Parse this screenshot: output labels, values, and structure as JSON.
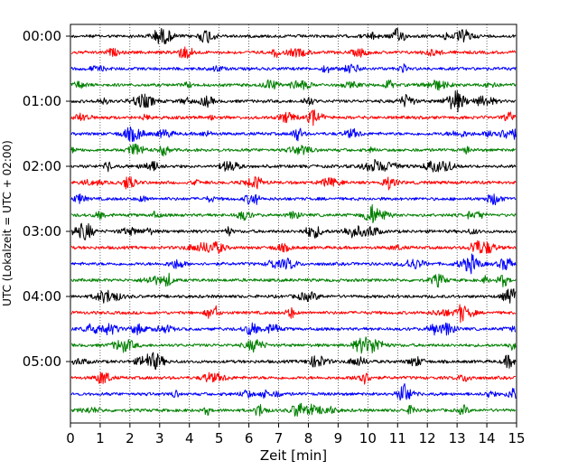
{
  "chart_data": {
    "type": "line",
    "title": "",
    "xlabel": "Zeit  [min]",
    "ylabel": "UTC (Lokalzeit = UTC + 02:00)",
    "xlim": [
      0,
      15
    ],
    "x_ticks": [
      0,
      1,
      2,
      3,
      4,
      5,
      6,
      7,
      8,
      9,
      10,
      11,
      12,
      13,
      14,
      15
    ],
    "x_tick_labels": [
      "0",
      "1",
      "2",
      "3",
      "4",
      "5",
      "6",
      "7",
      "8",
      "9",
      "10",
      "11",
      "12",
      "13",
      "14",
      "15"
    ],
    "y_tick_labels": [
      "00:00",
      "01:00",
      "02:00",
      "03:00",
      "04:00",
      "05:00"
    ],
    "y_tick_trace_index": [
      0,
      4,
      8,
      12,
      16,
      20
    ],
    "grid": "vertical dotted at each minute",
    "trace_minutes": 15,
    "color_cycle": [
      "#000000",
      "#ff0000",
      "#0000ff",
      "#008000"
    ],
    "traces": [
      {
        "start": "00:00"
      },
      {
        "start": "00:15"
      },
      {
        "start": "00:30"
      },
      {
        "start": "00:45"
      },
      {
        "start": "01:00"
      },
      {
        "start": "01:15"
      },
      {
        "start": "01:30"
      },
      {
        "start": "01:45"
      },
      {
        "start": "02:00"
      },
      {
        "start": "02:15"
      },
      {
        "start": "02:30"
      },
      {
        "start": "02:45"
      },
      {
        "start": "03:00"
      },
      {
        "start": "03:15"
      },
      {
        "start": "03:30"
      },
      {
        "start": "03:45"
      },
      {
        "start": "04:00"
      },
      {
        "start": "04:15"
      },
      {
        "start": "04:30"
      },
      {
        "start": "04:45"
      },
      {
        "start": "05:00"
      },
      {
        "start": "05:15"
      },
      {
        "start": "05:30"
      },
      {
        "start": "05:45"
      }
    ]
  }
}
